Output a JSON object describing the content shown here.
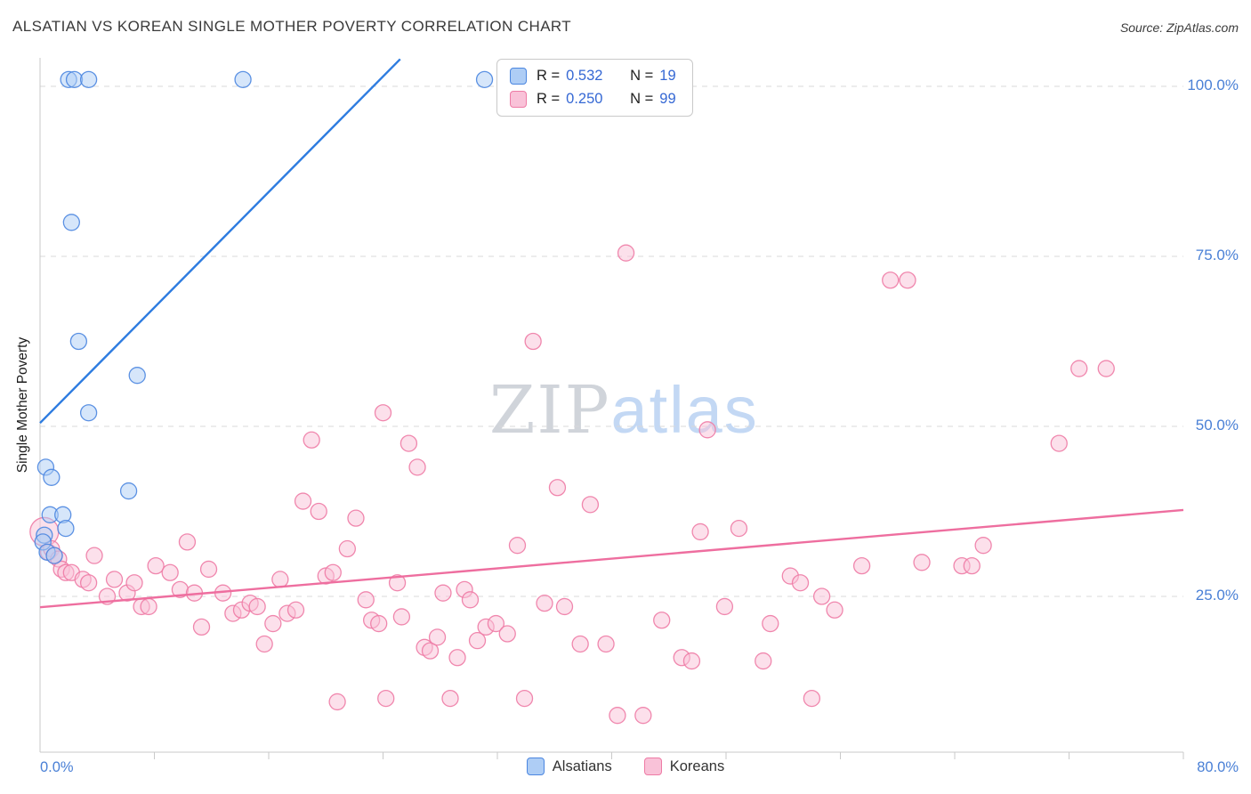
{
  "header": {
    "title": "ALSATIAN VS KOREAN SINGLE MOTHER POVERTY CORRELATION CHART",
    "source_prefix": "Source:",
    "source_name": "ZipAtlas.com"
  },
  "watermark": {
    "part1": "ZIP",
    "part2": "atlas"
  },
  "legend": {
    "rows": [
      {
        "series": "Alsatians",
        "r_label": "R =",
        "r_value": "0.532",
        "n_label": "N =",
        "n_value": "19"
      },
      {
        "series": "Koreans",
        "r_label": "R =",
        "r_value": "0.250",
        "n_label": "N =",
        "n_value": "99"
      }
    ]
  },
  "axes": {
    "y_label": "Single Mother Poverty",
    "x_min_label": "0.0%",
    "x_max_label": "80.0%",
    "y_ticks": [
      {
        "label": "100.0%",
        "value": 100
      },
      {
        "label": "75.0%",
        "value": 75
      },
      {
        "label": "50.0%",
        "value": 50
      },
      {
        "label": "25.0%",
        "value": 25
      }
    ]
  },
  "bottom_legend": [
    {
      "label": "Alsatians",
      "series": "Alsatians"
    },
    {
      "label": "Koreans",
      "series": "Koreans"
    }
  ],
  "colors": {
    "blue_fill": "#aecdf5",
    "blue_stroke": "#4b86e0",
    "blue_line": "#2e7ce0",
    "pink_fill": "#f9c2d8",
    "pink_stroke": "#ee7ba5",
    "pink_line": "#ee6e9f",
    "grid": "#d9d9d9",
    "axis": "#c9c9c9",
    "tick_text": "#4a80d6"
  },
  "chart_data": {
    "type": "scatter",
    "title": "ALSATIAN VS KOREAN SINGLE MOTHER POVERTY CORRELATION CHART",
    "xlabel": "",
    "ylabel": "Single Mother Poverty",
    "xlim": [
      0,
      0.8
    ],
    "ylim": [
      0,
      105
    ],
    "x_units": "fraction (0.0% - 80.0%)",
    "y_units": "percent",
    "grid": "horizontal-dashed",
    "legend_position": "top-center",
    "series": [
      {
        "name": "Alsatians",
        "R": 0.532,
        "N": 19,
        "fill": "#aecdf5",
        "stroke": "#4b86e0",
        "trend": {
          "x1": 0,
          "y1": 50.5,
          "x2": 0.252,
          "y2": 104,
          "color": "#2e7ce0"
        },
        "points": [
          [
            0.02,
            101
          ],
          [
            0.024,
            101
          ],
          [
            0.034,
            101
          ],
          [
            0.142,
            101
          ],
          [
            0.311,
            101
          ],
          [
            0.022,
            80
          ],
          [
            0.027,
            62.5
          ],
          [
            0.068,
            57.5
          ],
          [
            0.034,
            52
          ],
          [
            0.004,
            44
          ],
          [
            0.008,
            42.5
          ],
          [
            0.062,
            40.5
          ],
          [
            0.007,
            37
          ],
          [
            0.016,
            37
          ],
          [
            0.018,
            35
          ],
          [
            0.003,
            34
          ],
          [
            0.002,
            33
          ],
          [
            0.005,
            31.5
          ],
          [
            0.01,
            31
          ]
        ]
      },
      {
        "name": "Koreans",
        "R": 0.25,
        "N": 99,
        "fill": "#f9c2d8",
        "stroke": "#ee7ba5",
        "trend": {
          "x1": 0,
          "y1": 23.4,
          "x2": 0.8,
          "y2": 37.7,
          "color": "#ee6e9f"
        },
        "points": [
          [
            0.003,
            34.5,
            16
          ],
          [
            0.006,
            31.5
          ],
          [
            0.008,
            32
          ],
          [
            0.01,
            31
          ],
          [
            0.013,
            30.5
          ],
          [
            0.015,
            29
          ],
          [
            0.018,
            28.5
          ],
          [
            0.022,
            28.5
          ],
          [
            0.03,
            27.5
          ],
          [
            0.034,
            27
          ],
          [
            0.038,
            31
          ],
          [
            0.047,
            25
          ],
          [
            0.052,
            27.5
          ],
          [
            0.061,
            25.5
          ],
          [
            0.066,
            27
          ],
          [
            0.071,
            23.5
          ],
          [
            0.076,
            23.5
          ],
          [
            0.081,
            29.5
          ],
          [
            0.091,
            28.5
          ],
          [
            0.098,
            26
          ],
          [
            0.103,
            33
          ],
          [
            0.108,
            25.5
          ],
          [
            0.113,
            20.5
          ],
          [
            0.118,
            29
          ],
          [
            0.128,
            25.5
          ],
          [
            0.135,
            22.5
          ],
          [
            0.141,
            23
          ],
          [
            0.147,
            24
          ],
          [
            0.152,
            23.5
          ],
          [
            0.157,
            18
          ],
          [
            0.163,
            21
          ],
          [
            0.168,
            27.5
          ],
          [
            0.173,
            22.5
          ],
          [
            0.179,
            23
          ],
          [
            0.184,
            39
          ],
          [
            0.19,
            48
          ],
          [
            0.195,
            37.5
          ],
          [
            0.2,
            28
          ],
          [
            0.205,
            28.5
          ],
          [
            0.208,
            9.5
          ],
          [
            0.215,
            32
          ],
          [
            0.221,
            36.5
          ],
          [
            0.228,
            24.5
          ],
          [
            0.232,
            21.5
          ],
          [
            0.237,
            21
          ],
          [
            0.24,
            52
          ],
          [
            0.242,
            10
          ],
          [
            0.25,
            27
          ],
          [
            0.253,
            22
          ],
          [
            0.258,
            47.5
          ],
          [
            0.264,
            44
          ],
          [
            0.269,
            17.5
          ],
          [
            0.273,
            17
          ],
          [
            0.278,
            19
          ],
          [
            0.282,
            25.5
          ],
          [
            0.287,
            10
          ],
          [
            0.292,
            16
          ],
          [
            0.297,
            26
          ],
          [
            0.301,
            24.5
          ],
          [
            0.306,
            18.5
          ],
          [
            0.312,
            20.5
          ],
          [
            0.319,
            21
          ],
          [
            0.327,
            19.5
          ],
          [
            0.334,
            32.5
          ],
          [
            0.339,
            10
          ],
          [
            0.345,
            62.5
          ],
          [
            0.353,
            24
          ],
          [
            0.362,
            41
          ],
          [
            0.367,
            23.5
          ],
          [
            0.378,
            18
          ],
          [
            0.385,
            38.5
          ],
          [
            0.396,
            18
          ],
          [
            0.404,
            7.5
          ],
          [
            0.41,
            75.5
          ],
          [
            0.422,
            7.5
          ],
          [
            0.435,
            21.5
          ],
          [
            0.449,
            16
          ],
          [
            0.456,
            15.5
          ],
          [
            0.462,
            34.5
          ],
          [
            0.467,
            49.5
          ],
          [
            0.479,
            23.5
          ],
          [
            0.489,
            35
          ],
          [
            0.506,
            15.5
          ],
          [
            0.511,
            21
          ],
          [
            0.525,
            28
          ],
          [
            0.532,
            27
          ],
          [
            0.54,
            10
          ],
          [
            0.547,
            25
          ],
          [
            0.556,
            23
          ],
          [
            0.575,
            29.5
          ],
          [
            0.595,
            71.5
          ],
          [
            0.607,
            71.5
          ],
          [
            0.617,
            30
          ],
          [
            0.645,
            29.5
          ],
          [
            0.652,
            29.5
          ],
          [
            0.66,
            32.5
          ],
          [
            0.713,
            47.5
          ],
          [
            0.727,
            58.5
          ],
          [
            0.746,
            58.5
          ]
        ]
      }
    ]
  }
}
